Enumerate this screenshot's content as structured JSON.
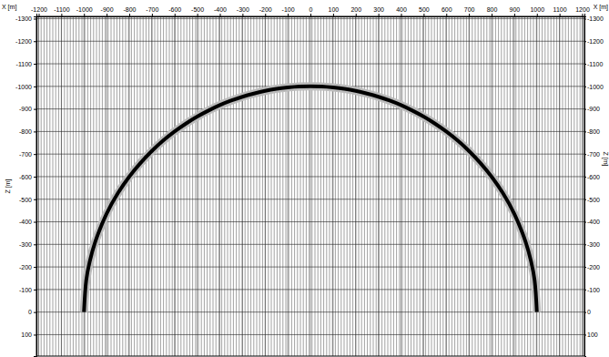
{
  "chart_data": {
    "type": "line",
    "x_label": "X [m]",
    "y_label": "Z [m]",
    "x": [
      -1000,
      -990,
      -975,
      -950,
      -900,
      -850,
      -800,
      -750,
      -700,
      -650,
      -600,
      -550,
      -500,
      -450,
      -400,
      -350,
      -300,
      -250,
      -200,
      -150,
      -100,
      -50,
      0,
      50,
      100,
      150,
      200,
      250,
      300,
      350,
      400,
      450,
      500,
      550,
      600,
      650,
      700,
      750,
      800,
      850,
      900,
      950,
      975,
      990,
      1000
    ],
    "values": [
      0,
      -141,
      -222,
      -312,
      -436,
      -527,
      -600,
      -661,
      -714,
      -760,
      -800,
      -835,
      -866,
      -893,
      -917,
      -937,
      -954,
      -968,
      -980,
      -989,
      -995,
      -999,
      -1000,
      -999,
      -995,
      -989,
      -980,
      -968,
      -954,
      -937,
      -917,
      -893,
      -866,
      -835,
      -800,
      -760,
      -714,
      -661,
      -600,
      -527,
      -436,
      -312,
      -222,
      -141,
      0
    ],
    "color": "#000000",
    "xlim": [
      -1210,
      1210
    ],
    "ylim": [
      -1310,
      195
    ],
    "xticks": [
      -1200,
      -1100,
      -1000,
      -900,
      -800,
      -700,
      -600,
      -500,
      -400,
      -300,
      -200,
      -100,
      0,
      100,
      200,
      300,
      400,
      500,
      600,
      700,
      800,
      900,
      1000,
      1100,
      1200
    ],
    "yticks": [
      -1300,
      -1200,
      -1100,
      -1000,
      -900,
      -800,
      -700,
      -600,
      -500,
      -400,
      -300,
      -200,
      -100,
      0,
      100
    ],
    "grid": true
  }
}
